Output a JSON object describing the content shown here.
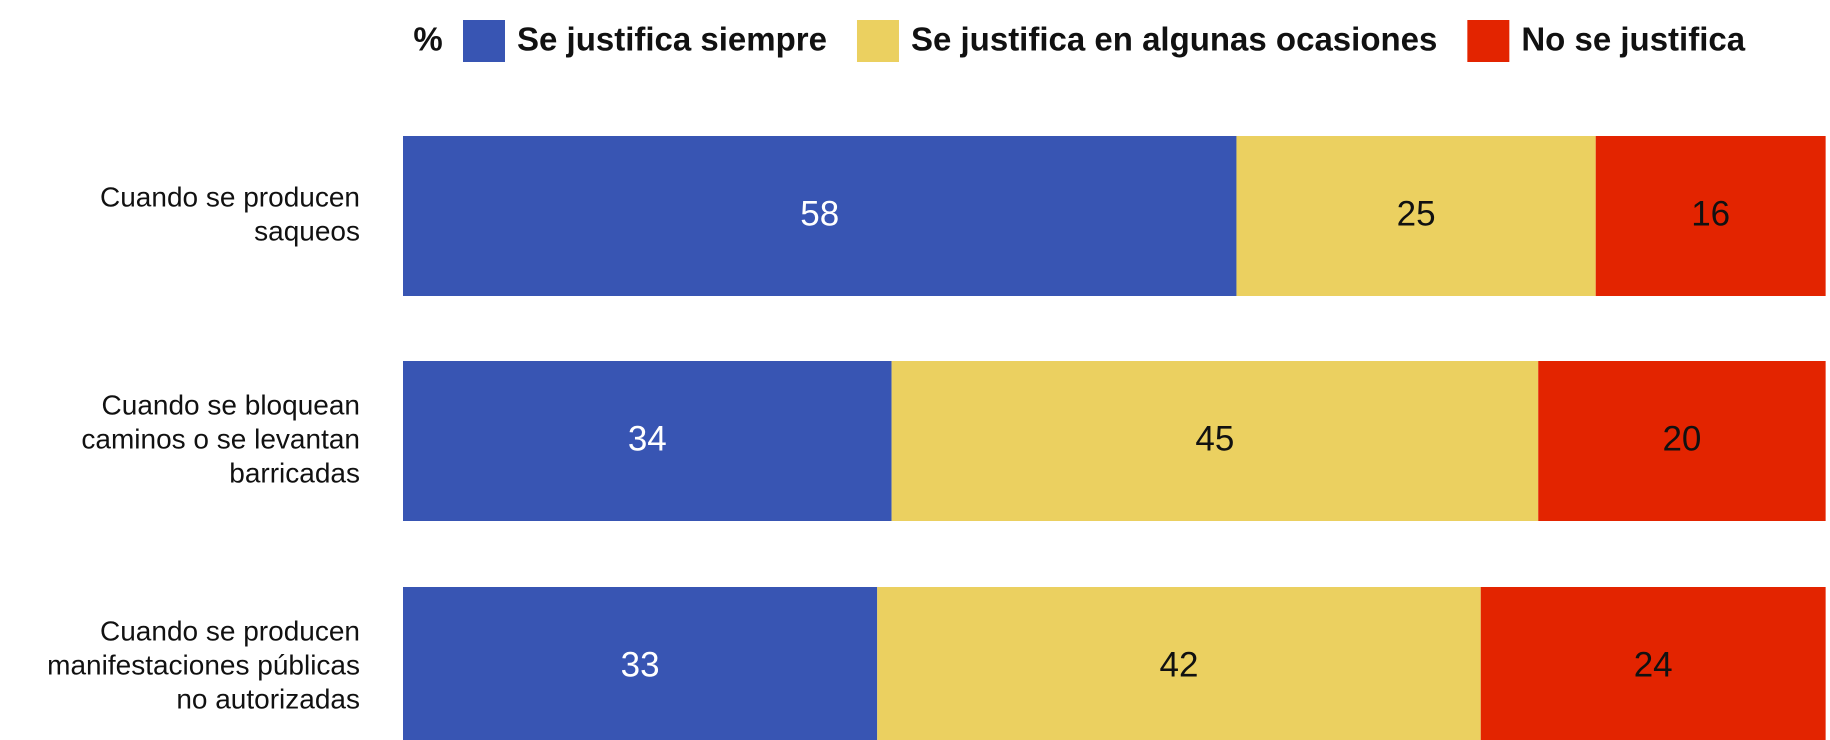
{
  "chart_data": {
    "type": "stacked_bar_horizontal",
    "unit_label": "%",
    "categories": [
      [
        "Cuando se producen",
        "saqueos"
      ],
      [
        "Cuando se bloquean",
        "caminos o se levantan",
        "barricadas"
      ],
      [
        "Cuando se producen",
        "manifestaciones públicas",
        "no autorizadas"
      ]
    ],
    "series": [
      {
        "name": "Se justifica siempre",
        "color": "#3855b3",
        "label_color": "#ffffff",
        "values": [
          58,
          34,
          33
        ]
      },
      {
        "name": "Se justifica en algunas ocasiones",
        "color": "#ebd060",
        "label_color": "#111111",
        "values": [
          25,
          45,
          42
        ]
      },
      {
        "name": "No se justifica",
        "color": "#e32400",
        "label_color": "#111111",
        "values": [
          16,
          20,
          24
        ]
      }
    ],
    "xlim": [
      0,
      100
    ]
  }
}
